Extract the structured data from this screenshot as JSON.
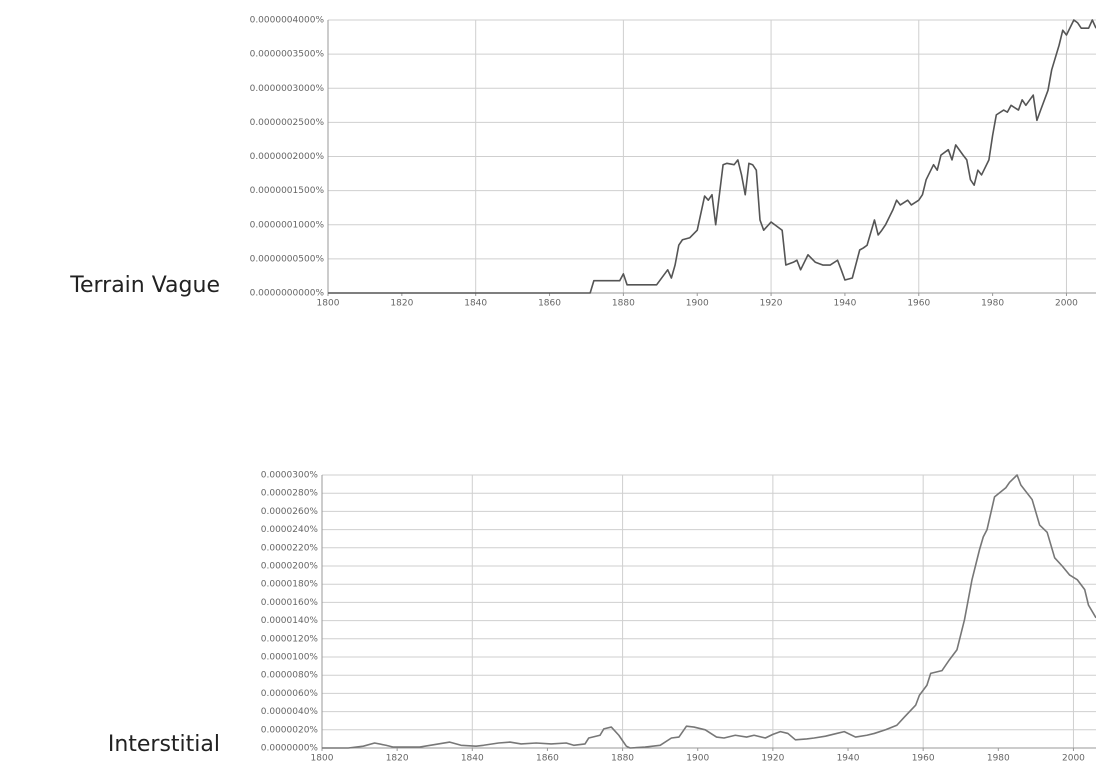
{
  "chart_data": [
    {
      "type": "line",
      "title": "Terrain Vague",
      "color": "#555555",
      "grid": true,
      "xlim": [
        1800,
        2008
      ],
      "xticks": [
        1800,
        1820,
        1840,
        1860,
        1880,
        1900,
        1920,
        1940,
        1960,
        1980,
        2000
      ],
      "ylim": [
        0,
        4e-07
      ],
      "yticks": [
        {
          "value": 0,
          "label": "0.0000000000%"
        },
        {
          "value": 5e-08,
          "label": "0.0000000500%"
        },
        {
          "value": 1e-07,
          "label": "0.0000001000%"
        },
        {
          "value": 1.5e-07,
          "label": "0.0000001500%"
        },
        {
          "value": 2e-07,
          "label": "0.0000002000%"
        },
        {
          "value": 2.5e-07,
          "label": "0.0000002500%"
        },
        {
          "value": 3e-07,
          "label": "0.0000003000%"
        },
        {
          "value": 3.5e-07,
          "label": "0.0000003500%"
        },
        {
          "value": 4e-07,
          "label": "0.0000004000%"
        }
      ],
      "x": [
        1800,
        1871,
        1872,
        1879,
        1880,
        1881,
        1889,
        1892,
        1893,
        1894,
        1895,
        1896,
        1898,
        1900,
        1902,
        1903,
        1904,
        1905,
        1907,
        1908,
        1910,
        1911,
        1912,
        1913,
        1914,
        1915,
        1916,
        1917,
        1918,
        1920,
        1921,
        1923,
        1924,
        1926,
        1927,
        1928,
        1930,
        1932,
        1934,
        1936,
        1938,
        1939,
        1940,
        1942,
        1944,
        1945,
        1946,
        1948,
        1949,
        1950,
        1951,
        1953,
        1954,
        1955,
        1957,
        1958,
        1960,
        1961,
        1962,
        1964,
        1965,
        1966,
        1968,
        1969,
        1970,
        1972,
        1973,
        1974,
        1975,
        1976,
        1977,
        1979,
        1980,
        1981,
        1983,
        1984,
        1985,
        1987,
        1988,
        1989,
        1991,
        1992,
        1993,
        1995,
        1996,
        1998,
        1999,
        2000,
        2002,
        2003,
        2004,
        2006,
        2007,
        2008
      ],
      "values": [
        0,
        0,
        1.8e-08,
        1.8e-08,
        2.8e-08,
        1.2e-08,
        1.2e-08,
        3.4e-08,
        2.2e-08,
        4.1e-08,
        7e-08,
        7.8e-08,
        8.1e-08,
        9.2e-08,
        1.42e-07,
        1.36e-07,
        1.44e-07,
        1e-07,
        1.88e-07,
        1.9e-07,
        1.88e-07,
        1.95e-07,
        1.73e-07,
        1.44e-07,
        1.9e-07,
        1.88e-07,
        1.8e-07,
        1.07e-07,
        9.2e-08,
        1.04e-07,
        1e-07,
        9.2e-08,
        4.1e-08,
        4.5e-08,
        4.8e-08,
        3.4e-08,
        5.6e-08,
        4.5e-08,
        4.1e-08,
        4.1e-08,
        4.8e-08,
        3.4e-08,
        1.9e-08,
        2.2e-08,
        6.3e-08,
        6.6e-08,
        7e-08,
        1.07e-07,
        8.5e-08,
        9.2e-08,
        1e-07,
        1.22e-07,
        1.36e-07,
        1.29e-07,
        1.36e-07,
        1.29e-07,
        1.36e-07,
        1.44e-07,
        1.66e-07,
        1.88e-07,
        1.8e-07,
        2.02e-07,
        2.1e-07,
        1.95e-07,
        2.17e-07,
        2.02e-07,
        1.95e-07,
        1.66e-07,
        1.58e-07,
        1.8e-07,
        1.73e-07,
        1.95e-07,
        2.31e-07,
        2.61e-07,
        2.68e-07,
        2.65e-07,
        2.75e-07,
        2.68e-07,
        2.83e-07,
        2.75e-07,
        2.9e-07,
        2.53e-07,
        2.68e-07,
        2.97e-07,
        3.27e-07,
        3.63e-07,
        3.85e-07,
        3.78e-07,
        4e-07,
        3.96e-07,
        3.88e-07,
        3.88e-07,
        4e-07,
        3.88e-07
      ]
    },
    {
      "type": "line",
      "title": "Interstitial",
      "color": "#777777",
      "grid": true,
      "xlim": [
        1800,
        2006
      ],
      "xticks": [
        1800,
        1820,
        1840,
        1860,
        1880,
        1900,
        1920,
        1940,
        1960,
        1980,
        2000
      ],
      "ylim": [
        0,
        3e-05
      ],
      "yticks": [
        {
          "value": 0,
          "label": "0.0000000%"
        },
        {
          "value": 2e-06,
          "label": "0.0000020%"
        },
        {
          "value": 4e-06,
          "label": "0.0000040%"
        },
        {
          "value": 6e-06,
          "label": "0.0000060%"
        },
        {
          "value": 8e-06,
          "label": "0.0000080%"
        },
        {
          "value": 1e-05,
          "label": "0.0000100%"
        },
        {
          "value": 1.2e-05,
          "label": "0.0000120%"
        },
        {
          "value": 1.4e-05,
          "label": "0.0000140%"
        },
        {
          "value": 1.6e-05,
          "label": "0.0000160%"
        },
        {
          "value": 1.8e-05,
          "label": "0.0000180%"
        },
        {
          "value": 2e-05,
          "label": "0.0000200%"
        },
        {
          "value": 2.2e-05,
          "label": "0.0000220%"
        },
        {
          "value": 2.4e-05,
          "label": "0.0000240%"
        },
        {
          "value": 2.6e-05,
          "label": "0.0000260%"
        },
        {
          "value": 2.8e-05,
          "label": "0.0000280%"
        },
        {
          "value": 3e-05,
          "label": "0.0000300%"
        }
      ],
      "x": [
        1800,
        1807,
        1811,
        1814,
        1817,
        1819,
        1826,
        1831,
        1834,
        1837,
        1841,
        1843,
        1847,
        1850,
        1853,
        1857,
        1861,
        1865,
        1867,
        1870,
        1871,
        1874,
        1875,
        1877,
        1879,
        1881,
        1882,
        1886,
        1890,
        1893,
        1895,
        1897,
        1899,
        1902,
        1905,
        1907,
        1910,
        1913,
        1915,
        1918,
        1920,
        1922,
        1924,
        1926,
        1929,
        1931,
        1934,
        1937,
        1939,
        1942,
        1945,
        1947,
        1950,
        1953,
        1955,
        1958,
        1959,
        1961,
        1962,
        1965,
        1966,
        1967,
        1969,
        1971,
        1973,
        1975,
        1976,
        1977,
        1978,
        1979,
        1982,
        1983,
        1985,
        1986,
        1989,
        1991,
        1993,
        1995,
        1997,
        1999,
        2001,
        2003,
        2004,
        2006
      ],
      "values": [
        0,
        0,
        2e-07,
        5.5e-07,
        3e-07,
        1e-07,
        1e-07,
        4.5e-07,
        6.5e-07,
        3e-07,
        2e-07,
        3e-07,
        5.5e-07,
        6.5e-07,
        4.5e-07,
        5.5e-07,
        4.5e-07,
        5.5e-07,
        3e-07,
        4.5e-07,
        1.1e-06,
        1.4e-06,
        2.1e-06,
        2.3e-06,
        1.4e-06,
        2e-07,
        0,
        1e-07,
        3e-07,
        1.1e-06,
        1.2e-06,
        2.4e-06,
        2.3e-06,
        2e-06,
        1.2e-06,
        1.1e-06,
        1.4e-06,
        1.2e-06,
        1.4e-06,
        1.1e-06,
        1.5e-06,
        1.8e-06,
        1.6e-06,
        9e-07,
        1e-06,
        1.1e-06,
        1.3e-06,
        1.6e-06,
        1.8e-06,
        1.2e-06,
        1.4e-06,
        1.6e-06,
        2e-06,
        2.5e-06,
        3.4e-06,
        4.7e-06,
        5.8e-06,
        6.9e-06,
        8.2e-06,
        8.5e-06,
        9.1e-06,
        9.7e-06,
        1.08e-05,
        1.41e-05,
        1.85e-05,
        2.18e-05,
        2.32e-05,
        2.4e-05,
        2.58e-05,
        2.76e-05,
        2.86e-05,
        2.92e-05,
        3e-05,
        2.89e-05,
        2.73e-05,
        2.45e-05,
        2.37e-05,
        2.09e-05,
        2e-05,
        1.9e-05,
        1.85e-05,
        1.74e-05,
        1.57e-05,
        1.43e-05
      ]
    }
  ]
}
